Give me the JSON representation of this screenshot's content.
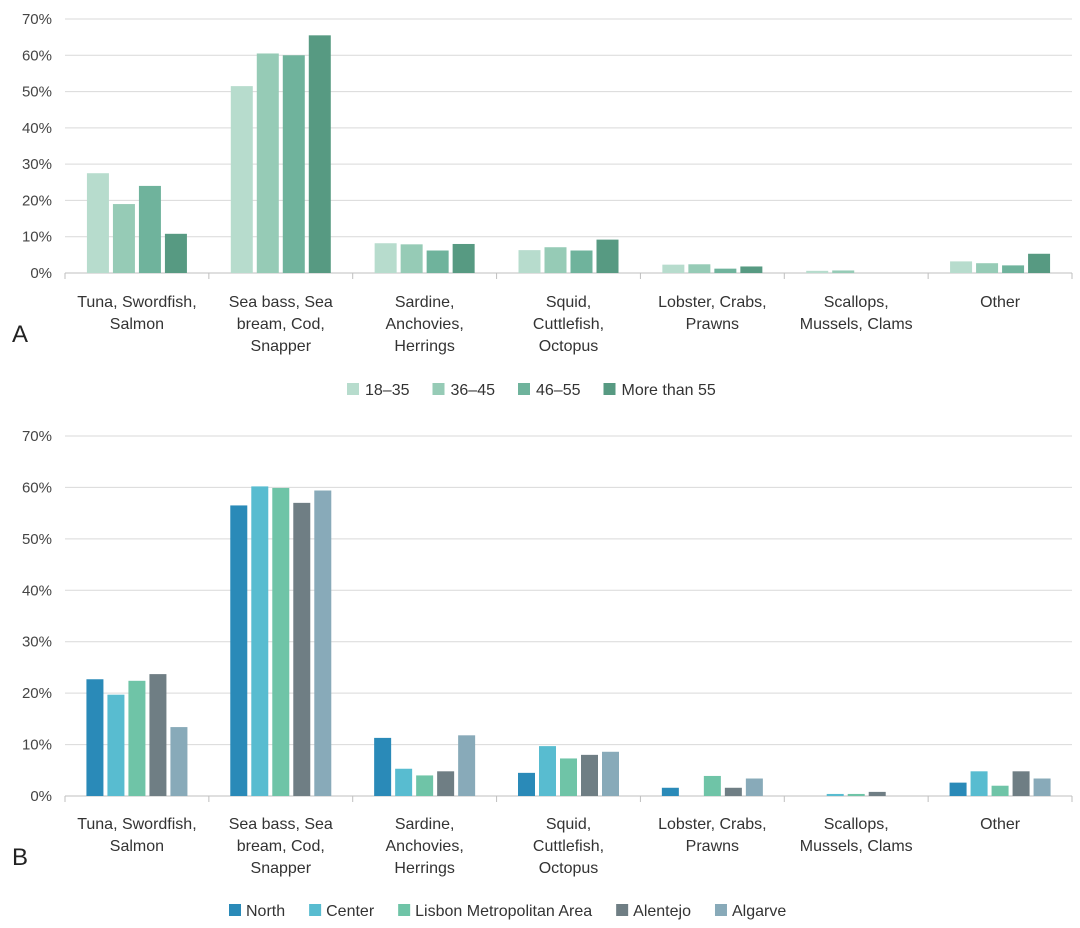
{
  "chart_data": [
    {
      "type": "bar",
      "panel_label": "A",
      "categories": [
        [
          "Tuna, Swordfish,",
          "Salmon"
        ],
        [
          "Sea bass, Sea",
          "bream, Cod,",
          "Snapper"
        ],
        [
          "Sardine,",
          "Anchovies,",
          "Herrings"
        ],
        [
          "Squid,",
          "Cuttlefish,",
          "Octopus"
        ],
        [
          "Lobster, Crabs,",
          "Prawns"
        ],
        [
          "Scallops,",
          "Mussels, Clams"
        ],
        [
          "Other"
        ]
      ],
      "series": [
        {
          "name": "18–35",
          "color": "#b7dccd",
          "values": [
            27.5,
            51.5,
            8.2,
            6.3,
            2.3,
            0.6,
            3.2
          ]
        },
        {
          "name": "36–45",
          "color": "#96cbb6",
          "values": [
            19,
            60.5,
            7.9,
            7.1,
            2.4,
            0.7,
            2.7
          ]
        },
        {
          "name": "46–55",
          "color": "#6fb39c",
          "values": [
            24,
            60,
            6.2,
            6.2,
            1.2,
            0,
            2.1
          ]
        },
        {
          "name": "More than 55",
          "color": "#579a82",
          "values": [
            10.8,
            65.5,
            8,
            9.2,
            1.8,
            0,
            5.3
          ]
        }
      ],
      "yticks": [
        "0%",
        "10%",
        "20%",
        "30%",
        "40%",
        "50%",
        "60%",
        "70%"
      ],
      "ylim": [
        0,
        70
      ],
      "legend_position": "bottom"
    },
    {
      "type": "bar",
      "panel_label": "B",
      "categories": [
        [
          "Tuna, Swordfish,",
          "Salmon"
        ],
        [
          "Sea bass, Sea",
          "bream, Cod,",
          "Snapper"
        ],
        [
          "Sardine,",
          "Anchovies,",
          "Herrings"
        ],
        [
          "Squid,",
          "Cuttlefish,",
          "Octopus"
        ],
        [
          "Lobster, Crabs,",
          "Prawns"
        ],
        [
          "Scallops,",
          "Mussels, Clams"
        ],
        [
          "Other"
        ]
      ],
      "series": [
        {
          "name": "North",
          "color": "#2a8ab8",
          "values": [
            22.7,
            56.5,
            11.3,
            4.5,
            1.6,
            0,
            2.6
          ]
        },
        {
          "name": "Center",
          "color": "#58bcd0",
          "values": [
            19.7,
            60.2,
            5.3,
            9.7,
            0,
            0.4,
            4.8
          ]
        },
        {
          "name": "Lisbon Metropolitan Area",
          "color": "#6fc4a7",
          "values": [
            22.4,
            59.9,
            4,
            7.3,
            3.9,
            0.4,
            2
          ]
        },
        {
          "name": "Alentejo",
          "color": "#6f7e84",
          "values": [
            23.7,
            57,
            4.8,
            8,
            1.6,
            0.8,
            4.8
          ]
        },
        {
          "name": "Algarve",
          "color": "#88aab9",
          "values": [
            13.4,
            59.4,
            11.8,
            8.6,
            3.4,
            0,
            3.4
          ]
        }
      ],
      "yticks": [
        "0%",
        "10%",
        "20%",
        "30%",
        "40%",
        "50%",
        "60%",
        "70%"
      ],
      "ylim": [
        0,
        70
      ],
      "legend_position": "bottom"
    }
  ]
}
